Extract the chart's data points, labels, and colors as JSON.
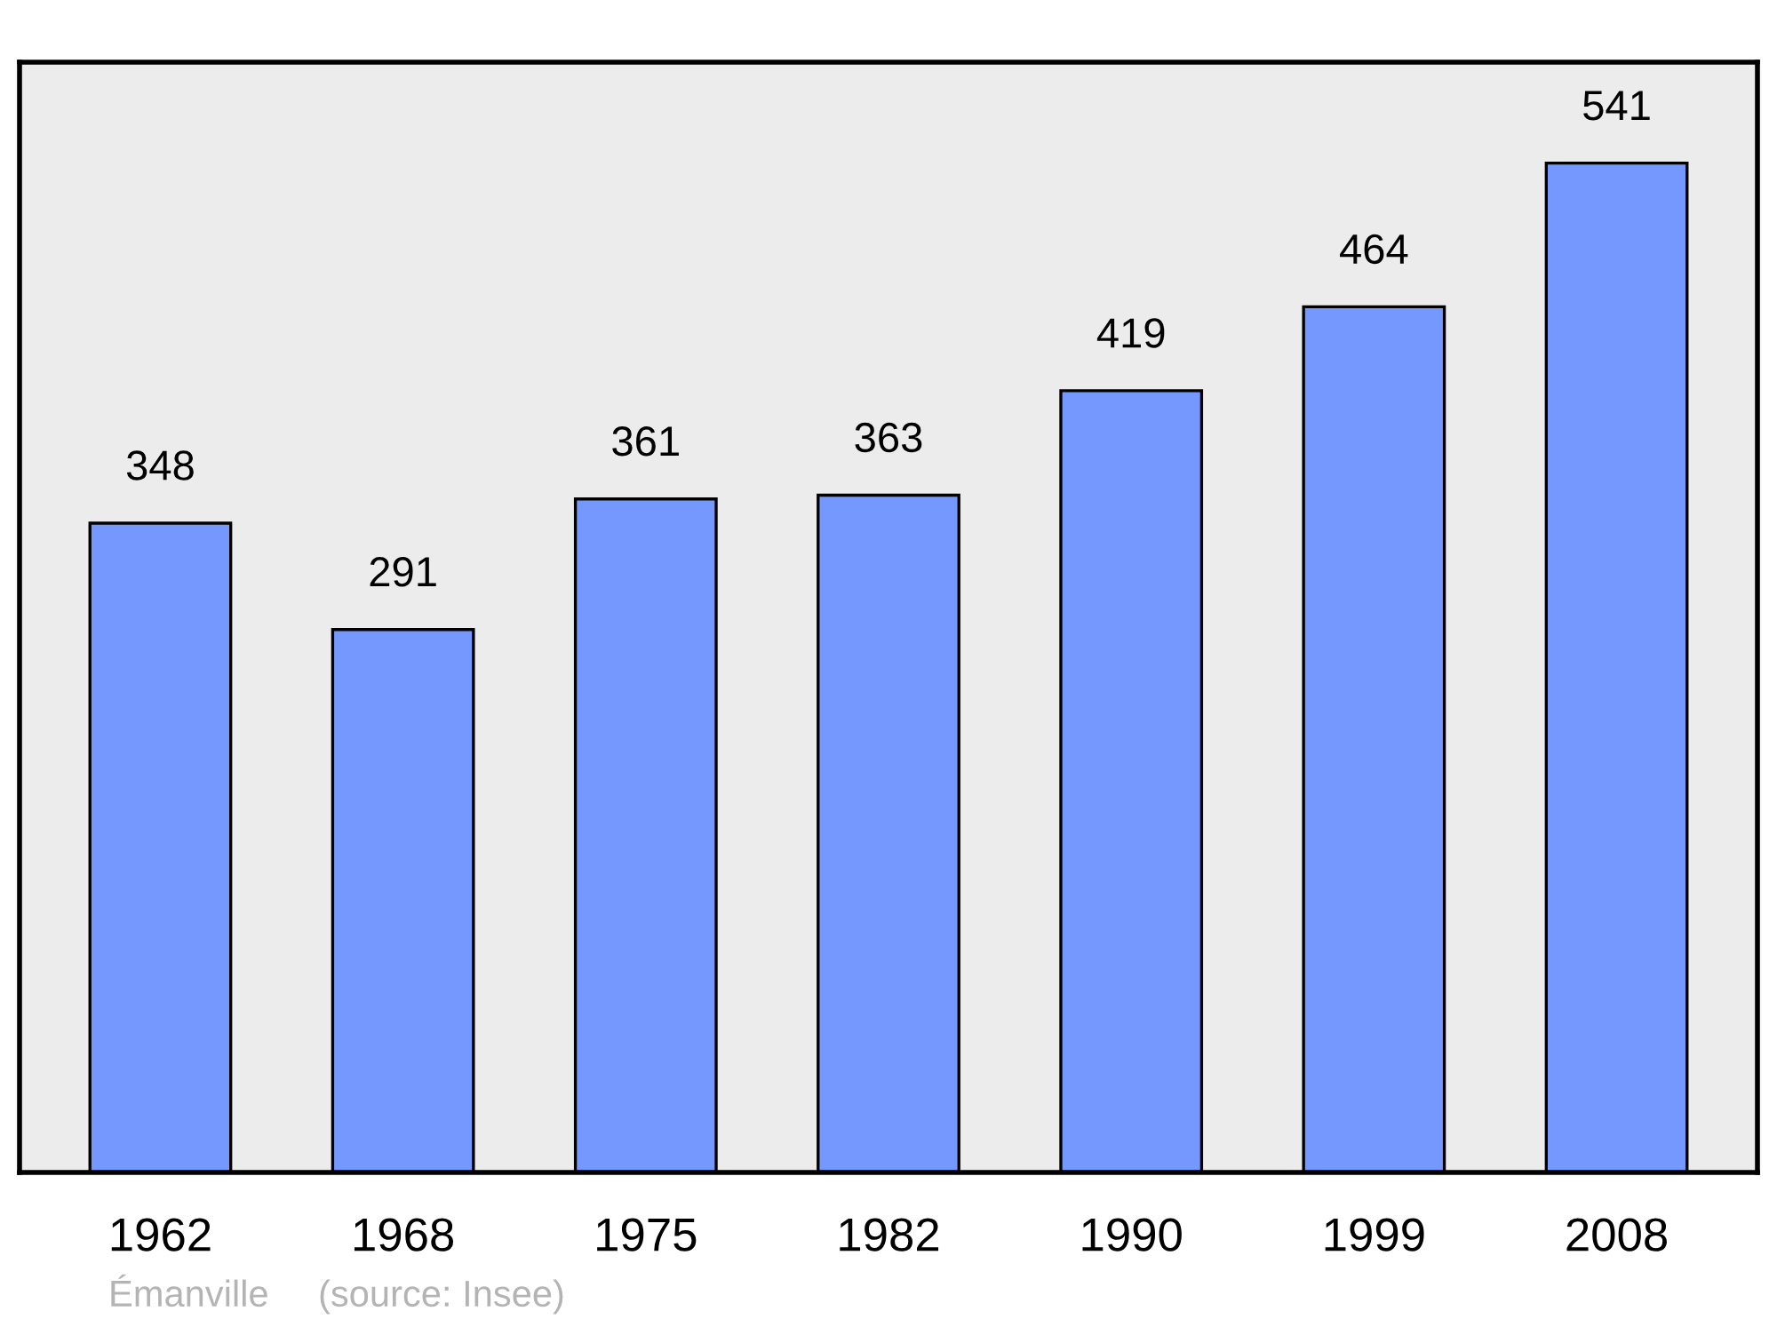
{
  "chart_data": {
    "type": "bar",
    "categories": [
      "1962",
      "1968",
      "1975",
      "1982",
      "1990",
      "1999",
      "2008"
    ],
    "values": [
      348,
      291,
      361,
      363,
      419,
      464,
      541
    ],
    "color": "#7598ff",
    "tick_labels": "x",
    "data_labels": true,
    "grid": false,
    "legend": false,
    "annotations": [
      "Émanville",
      "(source: Insee)"
    ]
  }
}
